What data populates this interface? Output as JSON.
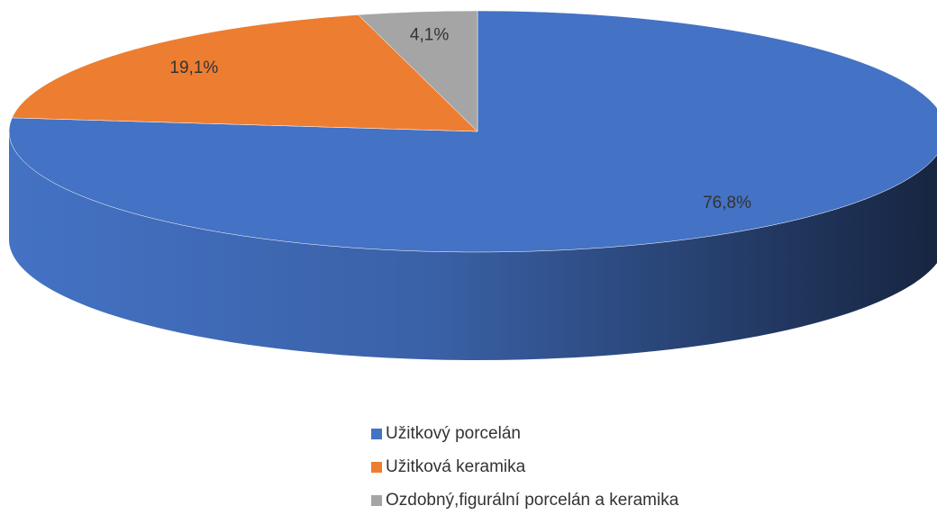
{
  "chart_data": {
    "type": "pie",
    "categories": [
      "Užitkový porcelán",
      "Užitková keramika",
      "Ozdobný,figurální porcelán a keramika"
    ],
    "values": [
      76.8,
      19.1,
      4.1
    ],
    "value_labels": [
      "76,8%",
      "19,1%",
      "4,1%"
    ],
    "colors": [
      "#4472c4",
      "#ed7d31",
      "#a5a5a5"
    ],
    "legend": "bottom"
  }
}
